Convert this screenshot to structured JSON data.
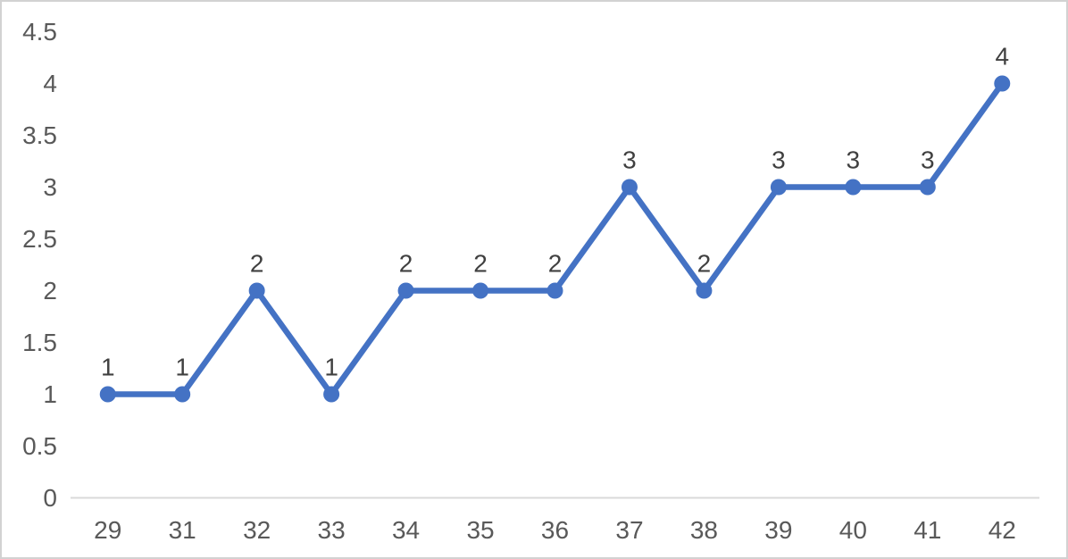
{
  "chart_data": {
    "type": "line",
    "title": "",
    "xlabel": "",
    "ylabel": "",
    "categories": [
      "29",
      "31",
      "32",
      "33",
      "34",
      "35",
      "36",
      "37",
      "38",
      "39",
      "40",
      "41",
      "42"
    ],
    "series": [
      {
        "name": "",
        "values": [
          1,
          1,
          2,
          1,
          2,
          2,
          2,
          3,
          2,
          3,
          3,
          3,
          4
        ],
        "data_labels": [
          "1",
          "1",
          "2",
          "1",
          "2",
          "2",
          "2",
          "3",
          "2",
          "3",
          "3",
          "3",
          "4"
        ]
      }
    ],
    "ylim": [
      0,
      4.5
    ],
    "ytick_step": 0.5,
    "yticks": [
      "0",
      "0.5",
      "1",
      "1.5",
      "2",
      "2.5",
      "3",
      "3.5",
      "4",
      "4.5"
    ],
    "grid": false,
    "legend": "none",
    "marker": "circle",
    "colors": {
      "line": "#4472C4",
      "marker": "#4472C4",
      "axis_line": "#D9D9D9",
      "tick_label": "#595959",
      "data_label": "#404040",
      "background": "#FFFFFF",
      "frame_border": "#D2D2D2"
    }
  }
}
